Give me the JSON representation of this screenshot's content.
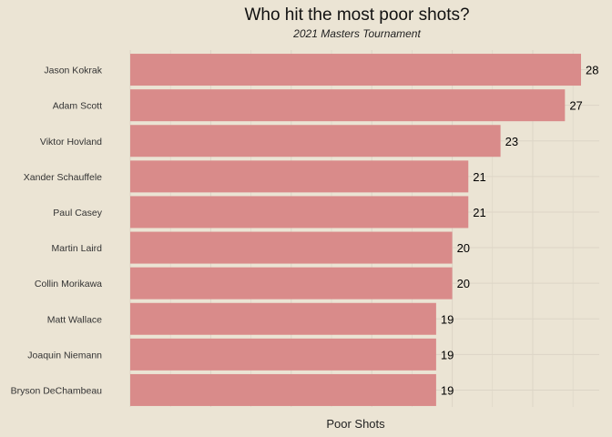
{
  "chart_data": {
    "type": "bar",
    "orientation": "horizontal",
    "title": "Who hit the most poor shots?",
    "subtitle": "2021 Masters Tournament",
    "xlabel": "Poor Shots",
    "ylabel": "",
    "xlim": [
      0,
      28
    ],
    "grid": true,
    "legend": "none",
    "bar_color": "#d98b8a",
    "background_color": "#ebe4d4",
    "grid_color": "#dcd5c6",
    "categories": [
      "Jason Kokrak",
      "Adam Scott",
      "Viktor Hovland",
      "Xander Schauffele",
      "Paul Casey",
      "Martin Laird",
      "Collin Morikawa",
      "Matt Wallace",
      "Joaquin Niemann",
      "Bryson DeChambeau"
    ],
    "values": [
      28,
      27,
      23,
      21,
      21,
      20,
      20,
      19,
      19,
      19
    ],
    "data_labels": [
      "28",
      "27",
      "23",
      "21",
      "21",
      "20",
      "20",
      "19",
      "19",
      "19"
    ]
  }
}
